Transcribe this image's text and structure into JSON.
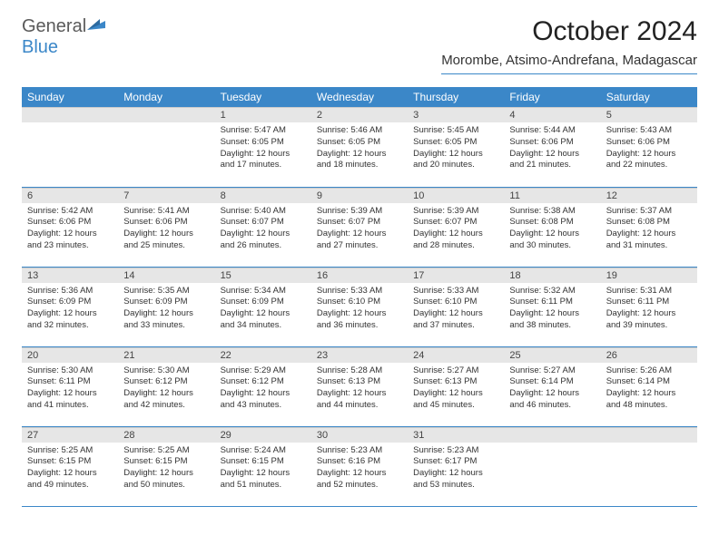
{
  "logo": {
    "part1": "General",
    "part2": "Blue"
  },
  "title": "October 2024",
  "location": "Morombe, Atsimo-Andrefana, Madagascar",
  "colors": {
    "header_bg": "#3b87c8",
    "header_text": "#ffffff",
    "daynum_bg": "#e6e6e6",
    "border": "#3b87c8",
    "logo_gray": "#5a5a5a",
    "logo_blue": "#3b87c8"
  },
  "weekdays": [
    "Sunday",
    "Monday",
    "Tuesday",
    "Wednesday",
    "Thursday",
    "Friday",
    "Saturday"
  ],
  "weeks": [
    [
      {
        "num": "",
        "sunrise": "",
        "sunset": "",
        "daylight": ""
      },
      {
        "num": "",
        "sunrise": "",
        "sunset": "",
        "daylight": ""
      },
      {
        "num": "1",
        "sunrise": "Sunrise: 5:47 AM",
        "sunset": "Sunset: 6:05 PM",
        "daylight": "Daylight: 12 hours and 17 minutes."
      },
      {
        "num": "2",
        "sunrise": "Sunrise: 5:46 AM",
        "sunset": "Sunset: 6:05 PM",
        "daylight": "Daylight: 12 hours and 18 minutes."
      },
      {
        "num": "3",
        "sunrise": "Sunrise: 5:45 AM",
        "sunset": "Sunset: 6:05 PM",
        "daylight": "Daylight: 12 hours and 20 minutes."
      },
      {
        "num": "4",
        "sunrise": "Sunrise: 5:44 AM",
        "sunset": "Sunset: 6:06 PM",
        "daylight": "Daylight: 12 hours and 21 minutes."
      },
      {
        "num": "5",
        "sunrise": "Sunrise: 5:43 AM",
        "sunset": "Sunset: 6:06 PM",
        "daylight": "Daylight: 12 hours and 22 minutes."
      }
    ],
    [
      {
        "num": "6",
        "sunrise": "Sunrise: 5:42 AM",
        "sunset": "Sunset: 6:06 PM",
        "daylight": "Daylight: 12 hours and 23 minutes."
      },
      {
        "num": "7",
        "sunrise": "Sunrise: 5:41 AM",
        "sunset": "Sunset: 6:06 PM",
        "daylight": "Daylight: 12 hours and 25 minutes."
      },
      {
        "num": "8",
        "sunrise": "Sunrise: 5:40 AM",
        "sunset": "Sunset: 6:07 PM",
        "daylight": "Daylight: 12 hours and 26 minutes."
      },
      {
        "num": "9",
        "sunrise": "Sunrise: 5:39 AM",
        "sunset": "Sunset: 6:07 PM",
        "daylight": "Daylight: 12 hours and 27 minutes."
      },
      {
        "num": "10",
        "sunrise": "Sunrise: 5:39 AM",
        "sunset": "Sunset: 6:07 PM",
        "daylight": "Daylight: 12 hours and 28 minutes."
      },
      {
        "num": "11",
        "sunrise": "Sunrise: 5:38 AM",
        "sunset": "Sunset: 6:08 PM",
        "daylight": "Daylight: 12 hours and 30 minutes."
      },
      {
        "num": "12",
        "sunrise": "Sunrise: 5:37 AM",
        "sunset": "Sunset: 6:08 PM",
        "daylight": "Daylight: 12 hours and 31 minutes."
      }
    ],
    [
      {
        "num": "13",
        "sunrise": "Sunrise: 5:36 AM",
        "sunset": "Sunset: 6:09 PM",
        "daylight": "Daylight: 12 hours and 32 minutes."
      },
      {
        "num": "14",
        "sunrise": "Sunrise: 5:35 AM",
        "sunset": "Sunset: 6:09 PM",
        "daylight": "Daylight: 12 hours and 33 minutes."
      },
      {
        "num": "15",
        "sunrise": "Sunrise: 5:34 AM",
        "sunset": "Sunset: 6:09 PM",
        "daylight": "Daylight: 12 hours and 34 minutes."
      },
      {
        "num": "16",
        "sunrise": "Sunrise: 5:33 AM",
        "sunset": "Sunset: 6:10 PM",
        "daylight": "Daylight: 12 hours and 36 minutes."
      },
      {
        "num": "17",
        "sunrise": "Sunrise: 5:33 AM",
        "sunset": "Sunset: 6:10 PM",
        "daylight": "Daylight: 12 hours and 37 minutes."
      },
      {
        "num": "18",
        "sunrise": "Sunrise: 5:32 AM",
        "sunset": "Sunset: 6:11 PM",
        "daylight": "Daylight: 12 hours and 38 minutes."
      },
      {
        "num": "19",
        "sunrise": "Sunrise: 5:31 AM",
        "sunset": "Sunset: 6:11 PM",
        "daylight": "Daylight: 12 hours and 39 minutes."
      }
    ],
    [
      {
        "num": "20",
        "sunrise": "Sunrise: 5:30 AM",
        "sunset": "Sunset: 6:11 PM",
        "daylight": "Daylight: 12 hours and 41 minutes."
      },
      {
        "num": "21",
        "sunrise": "Sunrise: 5:30 AM",
        "sunset": "Sunset: 6:12 PM",
        "daylight": "Daylight: 12 hours and 42 minutes."
      },
      {
        "num": "22",
        "sunrise": "Sunrise: 5:29 AM",
        "sunset": "Sunset: 6:12 PM",
        "daylight": "Daylight: 12 hours and 43 minutes."
      },
      {
        "num": "23",
        "sunrise": "Sunrise: 5:28 AM",
        "sunset": "Sunset: 6:13 PM",
        "daylight": "Daylight: 12 hours and 44 minutes."
      },
      {
        "num": "24",
        "sunrise": "Sunrise: 5:27 AM",
        "sunset": "Sunset: 6:13 PM",
        "daylight": "Daylight: 12 hours and 45 minutes."
      },
      {
        "num": "25",
        "sunrise": "Sunrise: 5:27 AM",
        "sunset": "Sunset: 6:14 PM",
        "daylight": "Daylight: 12 hours and 46 minutes."
      },
      {
        "num": "26",
        "sunrise": "Sunrise: 5:26 AM",
        "sunset": "Sunset: 6:14 PM",
        "daylight": "Daylight: 12 hours and 48 minutes."
      }
    ],
    [
      {
        "num": "27",
        "sunrise": "Sunrise: 5:25 AM",
        "sunset": "Sunset: 6:15 PM",
        "daylight": "Daylight: 12 hours and 49 minutes."
      },
      {
        "num": "28",
        "sunrise": "Sunrise: 5:25 AM",
        "sunset": "Sunset: 6:15 PM",
        "daylight": "Daylight: 12 hours and 50 minutes."
      },
      {
        "num": "29",
        "sunrise": "Sunrise: 5:24 AM",
        "sunset": "Sunset: 6:15 PM",
        "daylight": "Daylight: 12 hours and 51 minutes."
      },
      {
        "num": "30",
        "sunrise": "Sunrise: 5:23 AM",
        "sunset": "Sunset: 6:16 PM",
        "daylight": "Daylight: 12 hours and 52 minutes."
      },
      {
        "num": "31",
        "sunrise": "Sunrise: 5:23 AM",
        "sunset": "Sunset: 6:17 PM",
        "daylight": "Daylight: 12 hours and 53 minutes."
      },
      {
        "num": "",
        "sunrise": "",
        "sunset": "",
        "daylight": ""
      },
      {
        "num": "",
        "sunrise": "",
        "sunset": "",
        "daylight": ""
      }
    ]
  ]
}
